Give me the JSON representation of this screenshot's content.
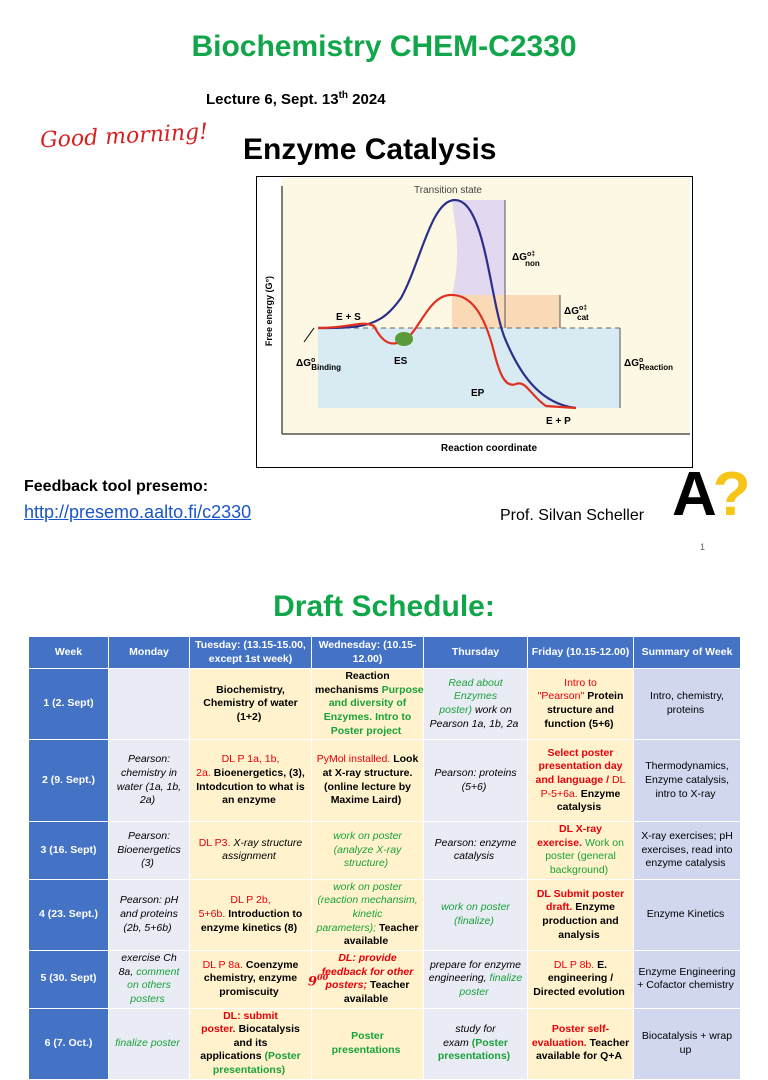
{
  "slide1": {
    "title": "Biochemistry CHEM-C2330",
    "lecture": {
      "text": "Lecture 6,  Sept. 13",
      "sup": "th",
      "year": " 2024"
    },
    "greeting": "Good morning!",
    "heading": "Enzyme Catalysis",
    "figure": {
      "transition_state": "Transition state",
      "y_label": "Free energy (G°)",
      "x_label": "Reaction coordinate",
      "es_start": "E + S",
      "es": "ES",
      "ep": "EP",
      "ep_end": "E + P",
      "dg_non": {
        "main": "ΔG",
        "sup": "o‡",
        "sub": "non"
      },
      "dg_cat": {
        "main": "ΔG",
        "sup": "o‡",
        "sub": "cat"
      },
      "dg_binding": {
        "main": "ΔG",
        "sup": "o",
        "sub": "Binding"
      },
      "dg_reaction": {
        "main": "ΔG",
        "sup": "o",
        "sub": "Reaction"
      }
    },
    "feedback_label": "Feedback tool presemo:",
    "feedback_link": "http://presemo.aalto.fi/c2330",
    "professor": "Prof. Silvan Scheller",
    "logo": {
      "letter": "A",
      "mark": "?"
    },
    "page_number": "1"
  },
  "slide2": {
    "title": "Draft Schedule:",
    "annotation": {
      "text": "9",
      "sup": "00"
    },
    "header": [
      "Week",
      "Monday",
      "Tuesday: (13.15-15.00, except 1st week)",
      "Wednesday: (10.15-12.00)",
      "Thursday",
      "Friday (10.15-12.00)",
      "Summary of Week"
    ],
    "rows": [
      {
        "week": "1 (2. Sept)",
        "cells": [
          [],
          [
            {
              "text": "Biochemistry, Chemistry of water (1+2)",
              "style": "bold"
            }
          ],
          [
            {
              "text": "Reaction mechanisms",
              "style": "bold"
            },
            {
              "text": "Purpose and diversity of Enzymes. Intro to Poster project",
              "style": "green bold"
            }
          ],
          [
            {
              "text": "Read about Enzymes poster)",
              "style": "green italic"
            },
            {
              "text": "work on Pearson 1a, 1b, 2a",
              "style": "italic"
            }
          ],
          [
            {
              "text": "Intro to \"Pearson\"",
              "style": "red"
            },
            {
              "text": "Protein structure and function (5+6)",
              "style": "bold"
            }
          ],
          [
            {
              "text": "Intro, chemistry, proteins",
              "style": ""
            }
          ]
        ]
      },
      {
        "week": "2 (9. Sept.)",
        "cells": [
          [
            {
              "text": "Pearson: chemistry in water (1a, 1b, 2a)",
              "style": "italic"
            }
          ],
          [
            {
              "text": "DL P 1a, 1b, 2a.",
              "style": "red"
            },
            {
              "text": "Bioenergetics, (3), Intodcution to what is an enzyme",
              "style": "bold"
            }
          ],
          [
            {
              "text": "PyMol installed.",
              "style": "red"
            },
            {
              "text": "Look at X-ray structure. (online lecture by Maxime Laird)",
              "style": "bold"
            }
          ],
          [
            {
              "text": "Pearson: proteins (5+6)",
              "style": "italic"
            }
          ],
          [
            {
              "text": "Select poster presentation day and language /",
              "style": "red bold"
            },
            {
              "text": "DL P-5+6a.",
              "style": "red"
            },
            {
              "text": "Enzyme catalysis",
              "style": "bold"
            }
          ],
          [
            {
              "text": "Thermodynamics, Enzyme catalysis, intro to X-ray",
              "style": ""
            }
          ]
        ]
      },
      {
        "week": "3 (16. Sept)",
        "cells": [
          [
            {
              "text": "Pearson: Bioenergetics (3)",
              "style": "italic"
            }
          ],
          [
            {
              "text": "DL P3.",
              "style": "red"
            },
            {
              "text": "X-ray structure assignment",
              "style": "italic"
            }
          ],
          [
            {
              "text": "work on poster (analyze X-ray structure)",
              "style": "green italic"
            }
          ],
          [
            {
              "text": "Pearson: enzyme catalysis",
              "style": "italic"
            }
          ],
          [
            {
              "text": "DL X-ray exercise.",
              "style": "red bold"
            },
            {
              "text": "Work on poster (general background)",
              "style": "green"
            }
          ],
          [
            {
              "text": "X-ray exercises; pH exercises, read into enzyme catalysis",
              "style": ""
            }
          ]
        ]
      },
      {
        "week": "4 (23. Sept.)",
        "cells": [
          [
            {
              "text": "Pearson: pH and proteins (2b, 5+6b)",
              "style": "italic"
            }
          ],
          [
            {
              "text": "DL P 2b, 5+6b.",
              "style": "red"
            },
            {
              "text": "Introduction to enzyme kinetics (8)",
              "style": "bold"
            }
          ],
          [
            {
              "text": "work on poster (reaction mechansim, kinetic parameters);",
              "style": "green italic"
            },
            {
              "text": "Teacher available",
              "style": "bold"
            }
          ],
          [
            {
              "text": "work on poster (finalize)",
              "style": "green italic"
            }
          ],
          [
            {
              "text": "DL Submit poster draft.",
              "style": "red bold"
            },
            {
              "text": "Enzyme production and analysis",
              "style": "bold"
            }
          ],
          [
            {
              "text": "Enzyme Kinetics",
              "style": ""
            }
          ]
        ]
      },
      {
        "week": "5 (30. Sept)",
        "cells": [
          [
            {
              "text": "exercise  Ch 8a,",
              "style": "italic"
            },
            {
              "text": "comment on others posters",
              "style": "green italic"
            }
          ],
          [
            {
              "text": "DL P 8a.",
              "style": "red"
            },
            {
              "text": "Coenzyme chemistry, enzyme promiscuity",
              "style": "bold"
            }
          ],
          [
            {
              "text": "DL: provide feedback for other posters;",
              "style": "red bold italic"
            },
            {
              "text": "Teacher available",
              "style": "bold"
            }
          ],
          [
            {
              "text": "prepare for enzyme engineering,",
              "style": "italic"
            },
            {
              "text": "finalize poster",
              "style": "green italic"
            }
          ],
          [
            {
              "text": "DL P 8b.",
              "style": "red"
            },
            {
              "text": "E. engineering / Directed evolution",
              "style": "bold"
            }
          ],
          [
            {
              "text": "Enzyme Engineering + Cofactor chemistry",
              "style": ""
            }
          ]
        ]
      },
      {
        "week": "6 (7. Oct.)",
        "cells": [
          [
            {
              "text": "finalize poster",
              "style": "green italic"
            }
          ],
          [
            {
              "text": "DL: submit poster.",
              "style": "red bold"
            },
            {
              "text": "Biocatalysis and its applications",
              "style": "bold"
            },
            {
              "text": "(Poster presentations)",
              "style": "green bold"
            }
          ],
          [
            {
              "text": "Poster presentations",
              "style": "green bold"
            }
          ],
          [
            {
              "text": "study for exam",
              "style": "italic"
            },
            {
              "text": "(Poster presentations)",
              "style": "green bold"
            }
          ],
          [
            {
              "text": "Poster self-evaluation.",
              "style": "red bold"
            },
            {
              "text": "Teacher available for Q+A",
              "style": "bold"
            }
          ],
          [
            {
              "text": "Biocatalysis + wrap up",
              "style": ""
            }
          ]
        ]
      }
    ]
  }
}
